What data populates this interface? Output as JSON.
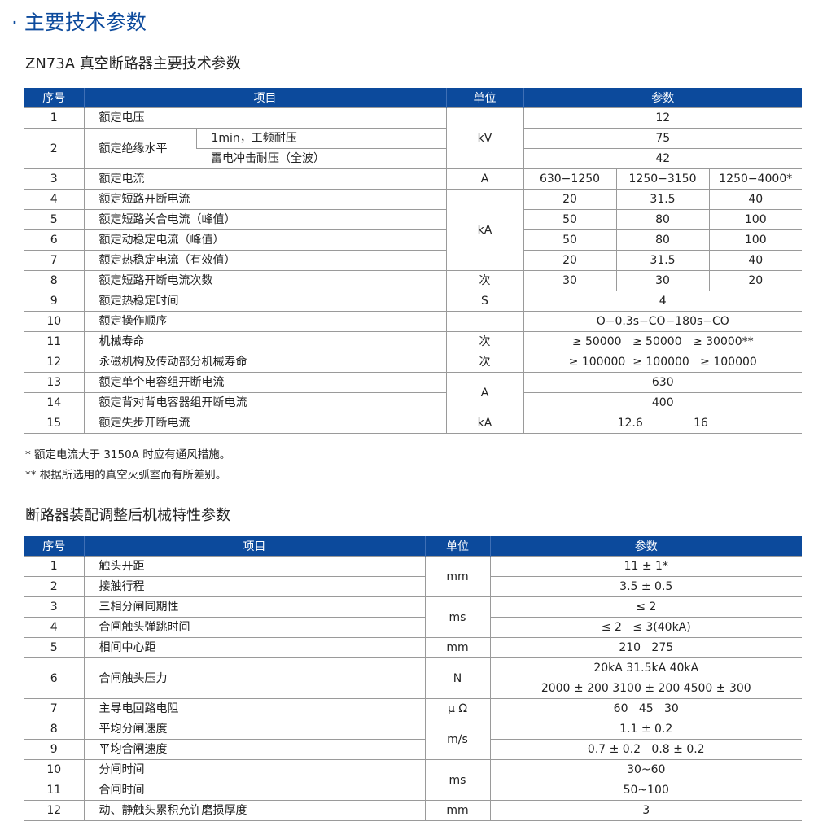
{
  "page_title": "· 主要技术参数",
  "table1": {
    "caption": "ZN73A 真空断路器主要技术参数",
    "headers": [
      "序号",
      "项目",
      "单位",
      "参数"
    ],
    "header_spans": [
      1,
      2,
      1,
      3
    ],
    "rows": [
      [
        {
          "text": "1"
        },
        {
          "text": "额定电压",
          "colspan": 2,
          "left": true
        },
        {
          "text": "kV",
          "rowspan": 3
        },
        {
          "text": "12",
          "colspan": 3
        }
      ],
      [
        {
          "text": "2",
          "rowspan": 2
        },
        {
          "text": "额定绝缘水平",
          "rowspan": 2,
          "left": true
        },
        {
          "text": "1min，工频耐压",
          "left": true
        },
        {
          "text": "75",
          "colspan": 3
        }
      ],
      [
        {
          "text": "雷电冲击耐压（全波）",
          "left": true
        },
        {
          "text": "42",
          "colspan": 3
        }
      ],
      [
        {
          "text": "3"
        },
        {
          "text": "额定电流",
          "colspan": 2,
          "left": true
        },
        {
          "text": "A"
        },
        {
          "text": "630−1250"
        },
        {
          "text": "1250−3150"
        },
        {
          "text": "1250−4000*"
        }
      ],
      [
        {
          "text": "4"
        },
        {
          "text": "额定短路开断电流",
          "colspan": 2,
          "left": true
        },
        {
          "text": "kA",
          "rowspan": 4
        },
        {
          "text": "20"
        },
        {
          "text": "31.5"
        },
        {
          "text": "40"
        }
      ],
      [
        {
          "text": "5"
        },
        {
          "text": "额定短路关合电流（峰值）",
          "colspan": 2,
          "left": true
        },
        {
          "text": "50"
        },
        {
          "text": "80"
        },
        {
          "text": "100"
        }
      ],
      [
        {
          "text": "6"
        },
        {
          "text": "额定动稳定电流（峰值）",
          "colspan": 2,
          "left": true
        },
        {
          "text": "50"
        },
        {
          "text": "80"
        },
        {
          "text": "100"
        }
      ],
      [
        {
          "text": "7"
        },
        {
          "text": "额定热稳定电流（有效值）",
          "colspan": 2,
          "left": true
        },
        {
          "text": "20"
        },
        {
          "text": "31.5"
        },
        {
          "text": "40"
        }
      ],
      [
        {
          "text": "8"
        },
        {
          "text": "额定短路开断电流次数",
          "colspan": 2,
          "left": true
        },
        {
          "text": "次"
        },
        {
          "text": "30"
        },
        {
          "text": "30"
        },
        {
          "text": "20"
        }
      ],
      [
        {
          "text": "9"
        },
        {
          "text": "额定热稳定时间",
          "colspan": 2,
          "left": true
        },
        {
          "text": "S"
        },
        {
          "text": "4",
          "colspan": 3
        }
      ],
      [
        {
          "text": "10"
        },
        {
          "text": "额定操作顺序",
          "colspan": 2,
          "left": true
        },
        {
          "text": ""
        },
        {
          "text": "O−0.3s−CO−180s−CO",
          "colspan": 3
        }
      ],
      [
        {
          "text": "11"
        },
        {
          "text": "机械寿命",
          "colspan": 2,
          "left": true
        },
        {
          "text": "次"
        },
        {
          "text": "≥ 50000   ≥ 50000   ≥ 30000**",
          "colspan": 3
        }
      ],
      [
        {
          "text": "12"
        },
        {
          "text": "永磁机构及传动部分机械寿命",
          "colspan": 2,
          "left": true
        },
        {
          "text": "次"
        },
        {
          "text": "≥ 100000  ≥ 100000   ≥ 100000",
          "colspan": 3
        }
      ],
      [
        {
          "text": "13"
        },
        {
          "text": "额定单个电容组开断电流",
          "colspan": 2,
          "left": true
        },
        {
          "text": "A",
          "rowspan": 2
        },
        {
          "text": "630",
          "colspan": 3
        }
      ],
      [
        {
          "text": "14"
        },
        {
          "text": "额定背对背电容器组开断电流",
          "colspan": 2,
          "left": true
        },
        {
          "text": "400",
          "colspan": 3
        }
      ],
      [
        {
          "text": "15"
        },
        {
          "text": "额定失步开断电流",
          "colspan": 2,
          "left": true
        },
        {
          "text": "kA"
        },
        {
          "text": "12.6              16",
          "colspan": 3
        }
      ]
    ]
  },
  "notes": [
    "* 额定电流大于 3150A 时应有通风措施。",
    "** 根据所选用的真空灭弧室而有所差别。"
  ],
  "table2": {
    "caption": "断路器装配调整后机械特性参数",
    "headers": [
      "序号",
      "项目",
      "单位",
      "参数"
    ],
    "header_spans": [
      1,
      1,
      1,
      1
    ],
    "rows": [
      [
        {
          "text": "1"
        },
        {
          "text": "触头开距",
          "left": true
        },
        {
          "text": "mm",
          "rowspan": 2
        },
        {
          "text": "11 ± 1*"
        }
      ],
      [
        {
          "text": "2"
        },
        {
          "text": "接触行程",
          "left": true
        },
        {
          "text": "3.5 ± 0.5"
        }
      ],
      [
        {
          "text": "3"
        },
        {
          "text": "三相分闸同期性",
          "left": true
        },
        {
          "text": "ms",
          "rowspan": 2
        },
        {
          "text": "≤ 2"
        }
      ],
      [
        {
          "text": "4"
        },
        {
          "text": "合闸触头弹跳时间",
          "left": true
        },
        {
          "text": "≤ 2   ≤ 3(40kA)"
        }
      ],
      [
        {
          "text": "5"
        },
        {
          "text": "相间中心距",
          "left": true
        },
        {
          "text": "mm"
        },
        {
          "text": "210   275"
        }
      ],
      [
        {
          "text": "6"
        },
        {
          "text": "合闸触头压力",
          "left": true
        },
        {
          "text": "N"
        },
        {
          "text": "20kA   31.5kA   40kA\n2000 ± 200   3100 ± 200   4500 ± 300"
        }
      ],
      [
        {
          "text": "7"
        },
        {
          "text": "主导电回路电阻",
          "left": true
        },
        {
          "text": "μ Ω"
        },
        {
          "text": "60   45   30"
        }
      ],
      [
        {
          "text": "8"
        },
        {
          "text": "平均分闸速度",
          "left": true
        },
        {
          "text": "m/s",
          "rowspan": 2
        },
        {
          "text": "1.1 ± 0.2"
        }
      ],
      [
        {
          "text": "9"
        },
        {
          "text": "平均合闸速度",
          "left": true
        },
        {
          "text": "0.7 ± 0.2   0.8 ± 0.2"
        }
      ],
      [
        {
          "text": "10"
        },
        {
          "text": "分闸时间",
          "left": true
        },
        {
          "text": "ms",
          "rowspan": 2
        },
        {
          "text": "30~60"
        }
      ],
      [
        {
          "text": "11"
        },
        {
          "text": "合闸时间",
          "left": true
        },
        {
          "text": "50~100"
        }
      ],
      [
        {
          "text": "12"
        },
        {
          "text": "动、静触头累积允许磨损厚度",
          "left": true
        },
        {
          "text": "mm"
        },
        {
          "text": "3"
        }
      ]
    ]
  },
  "colors": {
    "header_bg": "#0c4a9c",
    "title": "#0c4a9c"
  }
}
